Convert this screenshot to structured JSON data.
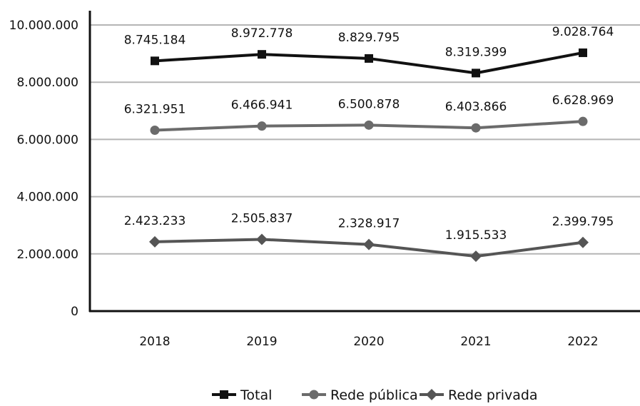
{
  "chart_data": {
    "type": "line",
    "categories": [
      "2018",
      "2019",
      "2020",
      "2021",
      "2022"
    ],
    "ylim": [
      0,
      10000000
    ],
    "yticks": [
      0,
      2000000,
      4000000,
      6000000,
      8000000,
      10000000
    ],
    "ytick_labels": [
      "0",
      "2.000.000",
      "4.000.000",
      "6.000.000",
      "8.000.000",
      "10.000.000"
    ],
    "grid": "horizontal",
    "legend_position": "bottom",
    "series": [
      {
        "name": "Total",
        "marker": "square",
        "color": "#111111",
        "values": [
          8745184,
          8972778,
          8829795,
          8319399,
          9028764
        ],
        "labels": [
          "8.745.184",
          "8.972.778",
          "8.829.795",
          "8.319.399",
          "9.028.764"
        ]
      },
      {
        "name": "Rede pública",
        "marker": "circle",
        "color": "#6b6b6b",
        "values": [
          6321951,
          6466941,
          6500878,
          6403866,
          6628969
        ],
        "labels": [
          "6.321.951",
          "6.466.941",
          "6.500.878",
          "6.403.866",
          "6.628.969"
        ]
      },
      {
        "name": "Rede privada",
        "marker": "diamond",
        "color": "#555555",
        "values": [
          2423233,
          2505837,
          2328917,
          1915533,
          2399795
        ],
        "labels": [
          "2.423.233",
          "2.505.837",
          "2.328.917",
          "1.915.533",
          "2.399.795"
        ]
      }
    ]
  }
}
